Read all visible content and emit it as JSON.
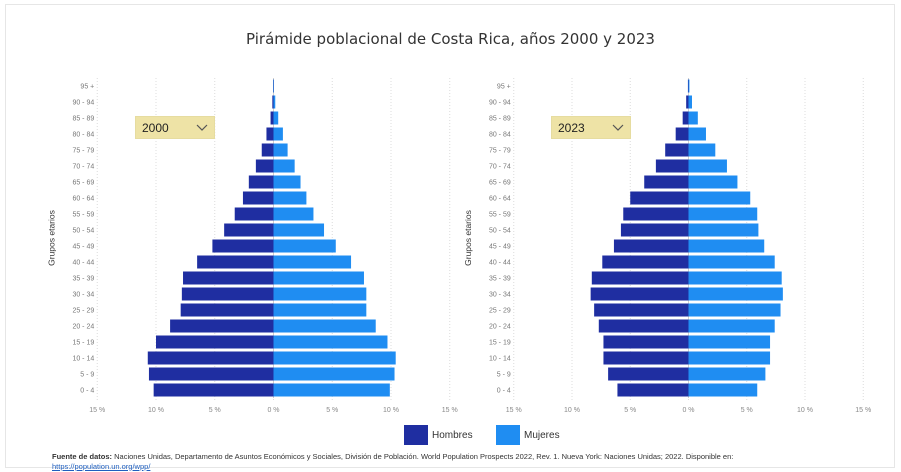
{
  "title": "Pirámide poblacional de Costa Rica, años 2000 y 2023",
  "colors": {
    "hombres": "#1f2ea1",
    "mujeres": "#1f8df2",
    "dropdown": "#eee3a6"
  },
  "legend": {
    "hombres": "Hombres",
    "mujeres": "Mujeres"
  },
  "source": {
    "label": "Fuente de datos:",
    "text": "Naciones Unidas, Departamento de Asuntos Económicos y Sociales, División de Población. World Population Prospects 2022, Rev. 1. Nueva York: Naciones Unidas; 2022. Disponible en:",
    "link": "https://population.un.org/wpp/"
  },
  "chart_data": [
    {
      "type": "bar",
      "orientation": "horizontal",
      "year_selector": "2000",
      "ylabel": "Grupos etarios",
      "categories": [
        "0 - 4",
        "5 - 9",
        "10 - 14",
        "15 - 19",
        "20 - 24",
        "25 - 29",
        "30 - 34",
        "35 - 39",
        "40 - 44",
        "45 - 49",
        "50 - 54",
        "55 - 59",
        "60 - 64",
        "65 - 69",
        "70 - 74",
        "75 - 79",
        "80 - 84",
        "85 - 89",
        "90 - 94",
        "95 +"
      ],
      "series": [
        {
          "name": "Hombres",
          "values": [
            -10.2,
            -10.6,
            -10.7,
            -10.0,
            -8.8,
            -7.9,
            -7.8,
            -7.7,
            -6.5,
            -5.2,
            -4.2,
            -3.3,
            -2.6,
            -2.1,
            -1.5,
            -1.0,
            -0.6,
            -0.25,
            -0.1,
            -0.03
          ]
        },
        {
          "name": "Mujeres",
          "values": [
            9.9,
            10.3,
            10.4,
            9.7,
            8.7,
            7.9,
            7.9,
            7.7,
            6.6,
            5.3,
            4.3,
            3.4,
            2.8,
            2.3,
            1.8,
            1.2,
            0.8,
            0.4,
            0.15,
            0.04
          ]
        }
      ],
      "xticks": [
        "15 %",
        "10 %",
        "5 %",
        "0 %",
        "5 %",
        "10 %",
        "15 %"
      ],
      "xlim": [
        -15,
        15
      ]
    },
    {
      "type": "bar",
      "orientation": "horizontal",
      "year_selector": "2023",
      "ylabel": "Grupos etarios",
      "categories": [
        "0 - 4",
        "5 - 9",
        "10 - 14",
        "15 - 19",
        "20 - 24",
        "25 - 29",
        "30 - 34",
        "35 - 39",
        "40 - 44",
        "45 - 49",
        "50 - 54",
        "55 - 59",
        "60 - 64",
        "65 - 69",
        "70 - 74",
        "75 - 79",
        "80 - 84",
        "85 - 89",
        "90 - 94",
        "95 +"
      ],
      "series": [
        {
          "name": "Hombres",
          "values": [
            -6.1,
            -6.9,
            -7.3,
            -7.3,
            -7.7,
            -8.1,
            -8.4,
            -8.3,
            -7.4,
            -6.4,
            -5.8,
            -5.6,
            -5.0,
            -3.8,
            -2.8,
            -2.0,
            -1.1,
            -0.5,
            -0.2,
            -0.05
          ]
        },
        {
          "name": "Mujeres",
          "values": [
            5.9,
            6.6,
            7.0,
            7.0,
            7.4,
            7.9,
            8.1,
            8.0,
            7.4,
            6.5,
            6.0,
            5.9,
            5.3,
            4.2,
            3.3,
            2.3,
            1.5,
            0.8,
            0.3,
            0.08
          ]
        }
      ],
      "xticks": [
        "15 %",
        "10 %",
        "5 %",
        "0 %",
        "5 %",
        "10 %",
        "15 %"
      ],
      "xlim": [
        -15,
        15
      ]
    }
  ]
}
